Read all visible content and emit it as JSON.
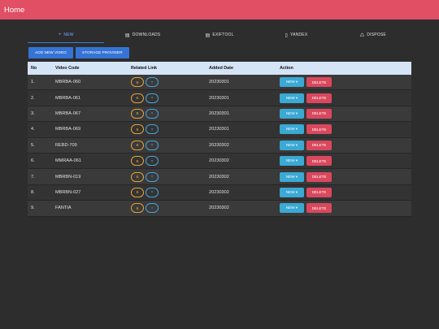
{
  "appbar": {
    "title": "Home"
  },
  "tabs": [
    {
      "label": "NEW",
      "icon": "+"
    },
    {
      "label": "DOWNLOADS",
      "icon": "▤"
    },
    {
      "label": "EXIFTOOL",
      "icon": "▤"
    },
    {
      "label": "YANDEX",
      "icon": "▯"
    },
    {
      "label": "DISPOSE",
      "icon": "♺"
    }
  ],
  "actions": {
    "add_label": "ADD NEW VIDEO",
    "storage_label": "STORAGE PROVIDER"
  },
  "table": {
    "headers": {
      "no": "No",
      "code": "Video Code",
      "link": "Related Link",
      "date": "Added Date",
      "action": "Action"
    },
    "link_b": "B",
    "link_t": "T",
    "new_label": "NEW ▾",
    "delete_label": "DELETE",
    "rows": [
      {
        "no": "1.",
        "code": "MBRBA-060",
        "date": "20230301"
      },
      {
        "no": "2.",
        "code": "MBRBA-061",
        "date": "20230301"
      },
      {
        "no": "3.",
        "code": "MBRBA-067",
        "date": "20230301"
      },
      {
        "no": "4.",
        "code": "MBRBA-069",
        "date": "20230301"
      },
      {
        "no": "5.",
        "code": "REBD-709",
        "date": "20230302"
      },
      {
        "no": "6.",
        "code": "MMRAA-061",
        "date": "20230302"
      },
      {
        "no": "7.",
        "code": "MBRBN-019",
        "date": "20230302"
      },
      {
        "no": "8.",
        "code": "MBRBN-027",
        "date": "20230302"
      },
      {
        "no": "9.",
        "code": "FANTIA",
        "date": "20230302"
      }
    ]
  }
}
